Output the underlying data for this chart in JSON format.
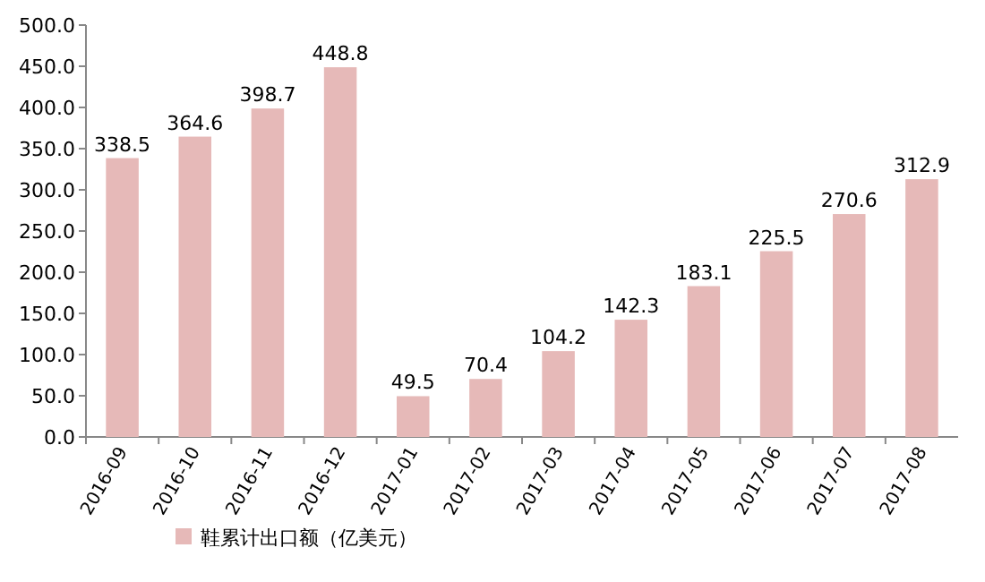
{
  "chart_data": {
    "type": "bar",
    "categories": [
      "2016-09",
      "2016-10",
      "2016-11",
      "2016-12",
      "2017-01",
      "2017-02",
      "2017-03",
      "2017-04",
      "2017-05",
      "2017-06",
      "2017-07",
      "2017-08"
    ],
    "series": [
      {
        "name": "鞋累计出口额（亿美元）",
        "color": "#e6b9b8",
        "values": [
          338.5,
          364.6,
          398.7,
          448.8,
          49.5,
          70.4,
          104.2,
          142.3,
          183.1,
          225.5,
          270.6,
          312.9
        ]
      }
    ],
    "ylim": [
      0,
      500
    ],
    "yticks": [
      {
        "value": 0,
        "label": "0.0"
      },
      {
        "value": 50,
        "label": "50.0"
      },
      {
        "value": 100,
        "label": "100.0"
      },
      {
        "value": 150,
        "label": "150.0"
      },
      {
        "value": 200,
        "label": "200.0"
      },
      {
        "value": 250,
        "label": "250.0"
      },
      {
        "value": 300,
        "label": "300.0"
      },
      {
        "value": 350,
        "label": "350.0"
      },
      {
        "value": 400,
        "label": "400.0"
      },
      {
        "value": 450,
        "label": "450.0"
      },
      {
        "value": 500,
        "label": "500.0"
      }
    ],
    "data_labels": true,
    "legend": "bottom"
  }
}
